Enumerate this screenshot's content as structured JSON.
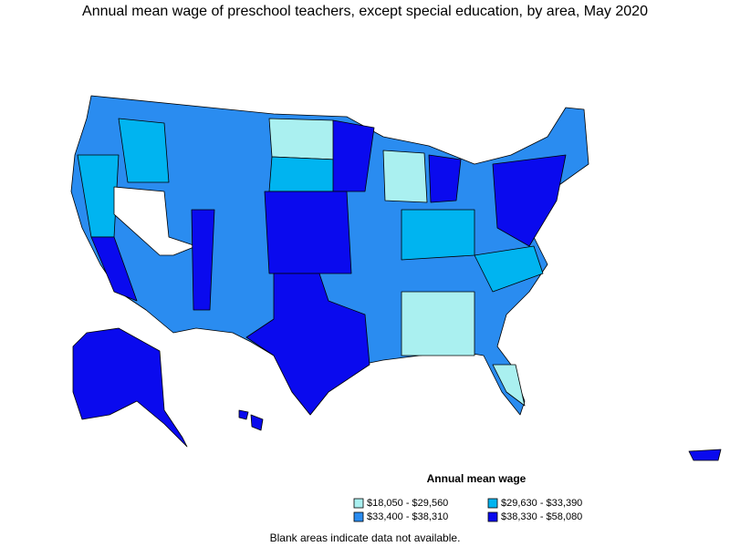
{
  "title": "Annual mean wage of preschool teachers, except special education, by area, May 2020",
  "legend": {
    "title": "Annual mean wage",
    "items": [
      {
        "label": "$18,050 - $29,560",
        "color": "#aaf0f0"
      },
      {
        "label": "$29,630 - $33,390",
        "color": "#00b4f0"
      },
      {
        "label": "$33,400 - $38,310",
        "color": "#2a8cf0"
      },
      {
        "label": "$38,330 - $58,080",
        "color": "#0a0aee"
      }
    ]
  },
  "footnote": "Blank areas indicate data not available."
}
